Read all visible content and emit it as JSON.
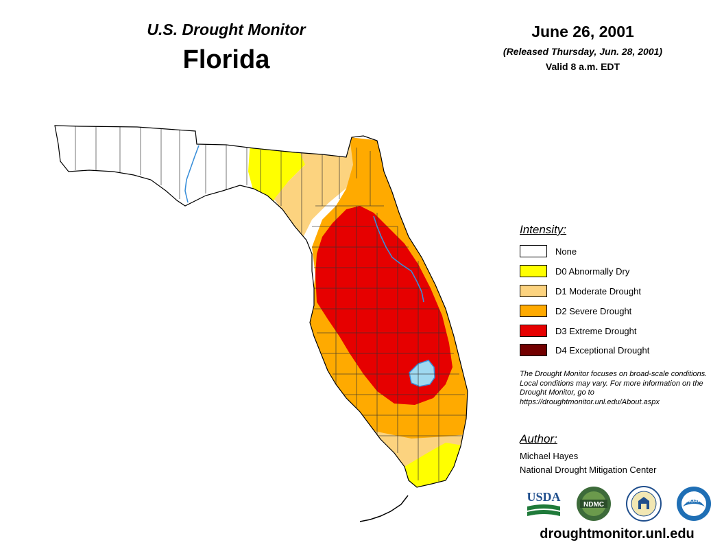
{
  "header": {
    "subtitle": "U.S. Drought Monitor",
    "title": "Florida",
    "date": "June 26, 2001",
    "released": "(Released Thursday, Jun. 28, 2001)",
    "valid": "Valid 8 a.m. EDT"
  },
  "legend": {
    "heading": "Intensity:",
    "items": [
      {
        "label": "None",
        "color": "#ffffff"
      },
      {
        "label": "D0 Abnormally Dry",
        "color": "#ffff00"
      },
      {
        "label": "D1 Moderate Drought",
        "color": "#fcd37f"
      },
      {
        "label": "D2 Severe Drought",
        "color": "#ffaa00"
      },
      {
        "label": "D3 Extreme Drought",
        "color": "#e60000"
      },
      {
        "label": "D4 Exceptional Drought",
        "color": "#730000"
      }
    ]
  },
  "note": "The Drought Monitor focuses on broad-scale conditions. Local conditions may vary. For more information on the Drought Monitor, go to https://droughtmonitor.unl.edu/About.aspx",
  "author": {
    "heading": "Author:",
    "name": "Michael Hayes",
    "org": "National Drought Mitigation Center"
  },
  "logos": {
    "usda": "USDA",
    "ndmc": "NDMC",
    "doc": "department-of-commerce-seal",
    "noaa": "NOAA"
  },
  "website": "droughtmonitor.unl.edu",
  "colors": {
    "water": "#9fd9f0",
    "river": "#3a8fd9",
    "county_line": "#333333"
  }
}
